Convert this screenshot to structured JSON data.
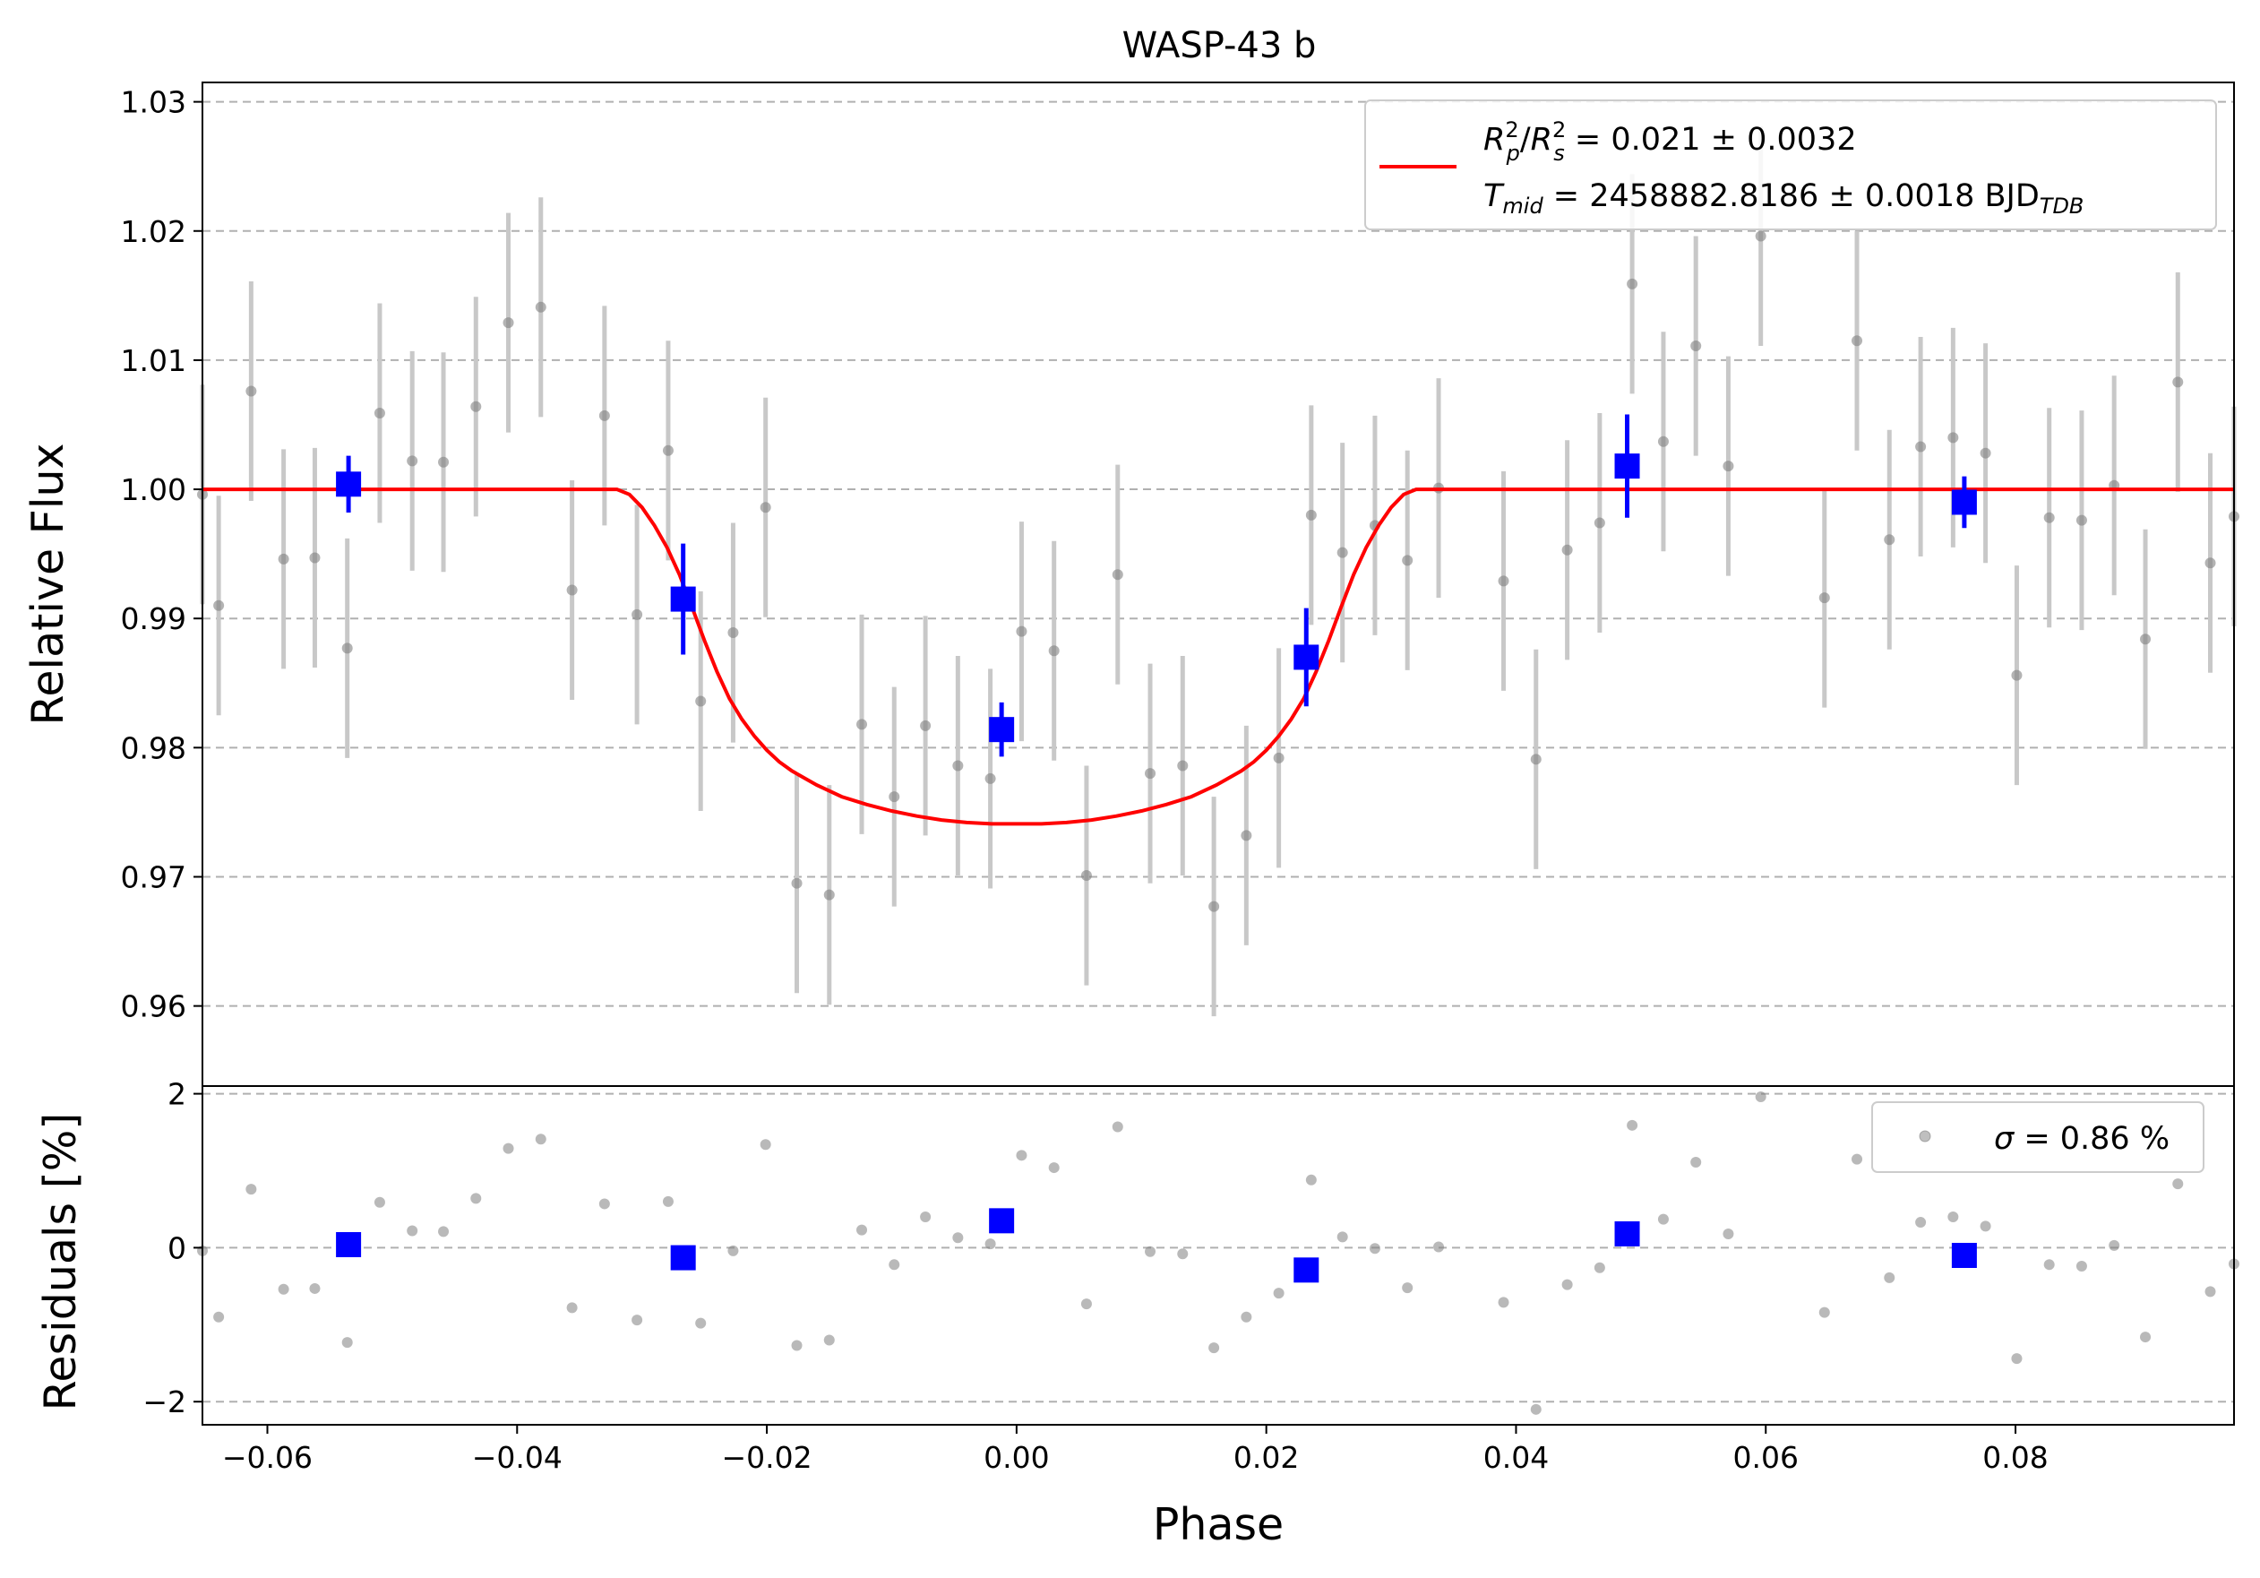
{
  "chart_data": {
    "type": "scatter",
    "title": "WASP-43 b",
    "xlabel": "Phase",
    "xlim": [
      -0.0652,
      0.0975
    ],
    "x_ticks": [
      "−0.06",
      "−0.04",
      "−0.02",
      "0.00",
      "0.02",
      "0.04",
      "0.06",
      "0.08"
    ],
    "x_tick_values": [
      -0.06,
      -0.04,
      -0.02,
      0.0,
      0.02,
      0.04,
      0.06,
      0.08
    ],
    "grid": "horizontal dashed",
    "colors": {
      "raw": "#808080",
      "raw_err": "#c8c8c8",
      "binned": "#0000ff",
      "model": "#ff0000",
      "grid": "#b0b0b0"
    },
    "top": {
      "ylabel": "Relative Flux",
      "ylim": [
        0.9538,
        1.0315
      ],
      "y_ticks": [
        "0.96",
        "0.97",
        "0.98",
        "0.99",
        "1.00",
        "1.01",
        "1.02",
        "1.03"
      ],
      "y_tick_values": [
        0.96,
        0.97,
        0.98,
        0.99,
        1.0,
        1.01,
        1.02,
        1.03
      ],
      "legend": {
        "position": "top-right",
        "line1_a": "R",
        "line1_a_sup": "2",
        "line1_a_sub": "p",
        "line1_b": "R",
        "line1_b_sup": "2",
        "line1_b_sub": "s",
        "line1_value": " = 0.021 ± 0.0032",
        "line2_T": "T",
        "line2_T_sub": "mid",
        "line2_value": " = 2458882.8186 ± 0.0018 BJD",
        "line2_unit_sub": "TDB"
      },
      "raw": [
        {
          "x": -0.0652,
          "y": 0.9996,
          "err": 0.0085
        },
        {
          "x": -0.0639,
          "y": 0.991,
          "err": 0.0085
        },
        {
          "x": -0.0613,
          "y": 1.0076,
          "err": 0.0085
        },
        {
          "x": -0.0587,
          "y": 0.9946,
          "err": 0.0085
        },
        {
          "x": -0.0562,
          "y": 0.9947,
          "err": 0.0085
        },
        {
          "x": -0.0536,
          "y": 0.9877,
          "err": 0.0085
        },
        {
          "x": -0.051,
          "y": 1.0059,
          "err": 0.0085
        },
        {
          "x": -0.0484,
          "y": 1.0022,
          "err": 0.0085
        },
        {
          "x": -0.0459,
          "y": 1.0021,
          "err": 0.0085
        },
        {
          "x": -0.0433,
          "y": 1.0064,
          "err": 0.0085
        },
        {
          "x": -0.0407,
          "y": 1.0129,
          "err": 0.0085
        },
        {
          "x": -0.0381,
          "y": 1.0141,
          "err": 0.0085
        },
        {
          "x": -0.0356,
          "y": 0.9922,
          "err": 0.0085
        },
        {
          "x": -0.033,
          "y": 1.0057,
          "err": 0.0085
        },
        {
          "x": -0.0304,
          "y": 0.9903,
          "err": 0.0085
        },
        {
          "x": -0.0279,
          "y": 1.003,
          "err": 0.0085
        },
        {
          "x": -0.0253,
          "y": 0.9836,
          "err": 0.0085
        },
        {
          "x": -0.0227,
          "y": 0.9889,
          "err": 0.0085
        },
        {
          "x": -0.0201,
          "y": 0.9986,
          "err": 0.0085
        },
        {
          "x": -0.0176,
          "y": 0.9695,
          "err": 0.0085
        },
        {
          "x": -0.015,
          "y": 0.9686,
          "err": 0.0085
        },
        {
          "x": -0.0124,
          "y": 0.9818,
          "err": 0.0085
        },
        {
          "x": -0.0098,
          "y": 0.9762,
          "err": 0.0085
        },
        {
          "x": -0.0073,
          "y": 0.9817,
          "err": 0.0085
        },
        {
          "x": -0.0047,
          "y": 0.9786,
          "err": 0.0085
        },
        {
          "x": -0.0021,
          "y": 0.9776,
          "err": 0.0085
        },
        {
          "x": 0.0004,
          "y": 0.989,
          "err": 0.0085
        },
        {
          "x": 0.003,
          "y": 0.9875,
          "err": 0.0085
        },
        {
          "x": 0.0056,
          "y": 0.9701,
          "err": 0.0085
        },
        {
          "x": 0.0081,
          "y": 0.9934,
          "err": 0.0085
        },
        {
          "x": 0.0107,
          "y": 0.978,
          "err": 0.0085
        },
        {
          "x": 0.0133,
          "y": 0.9786,
          "err": 0.0085
        },
        {
          "x": 0.0158,
          "y": 0.9677,
          "err": 0.0085
        },
        {
          "x": 0.0184,
          "y": 0.9732,
          "err": 0.0085
        },
        {
          "x": 0.021,
          "y": 0.9792,
          "err": 0.0085
        },
        {
          "x": 0.0236,
          "y": 0.998,
          "err": 0.0085
        },
        {
          "x": 0.0261,
          "y": 0.9951,
          "err": 0.0085
        },
        {
          "x": 0.0287,
          "y": 0.9972,
          "err": 0.0085
        },
        {
          "x": 0.0313,
          "y": 0.9945,
          "err": 0.0085
        },
        {
          "x": 0.0338,
          "y": 1.0001,
          "err": 0.0085
        },
        {
          "x": 0.039,
          "y": 0.9929,
          "err": 0.0085
        },
        {
          "x": 0.0416,
          "y": 0.9791,
          "err": 0.0085
        },
        {
          "x": 0.0441,
          "y": 0.9953,
          "err": 0.0085
        },
        {
          "x": 0.0467,
          "y": 0.9974,
          "err": 0.0085
        },
        {
          "x": 0.0493,
          "y": 1.0159,
          "err": 0.0085
        },
        {
          "x": 0.0518,
          "y": 1.0037,
          "err": 0.0085
        },
        {
          "x": 0.0544,
          "y": 1.0111,
          "err": 0.0085
        },
        {
          "x": 0.057,
          "y": 1.0018,
          "err": 0.0085
        },
        {
          "x": 0.0596,
          "y": 1.0196,
          "err": 0.0085
        },
        {
          "x": 0.0647,
          "y": 0.9916,
          "err": 0.0085
        },
        {
          "x": 0.0673,
          "y": 1.0115,
          "err": 0.0085
        },
        {
          "x": 0.0699,
          "y": 0.9961,
          "err": 0.0085
        },
        {
          "x": 0.0724,
          "y": 1.0033,
          "err": 0.0085
        },
        {
          "x": 0.075,
          "y": 1.004,
          "err": 0.0085
        },
        {
          "x": 0.0776,
          "y": 1.0028,
          "err": 0.0085
        },
        {
          "x": 0.0801,
          "y": 0.9856,
          "err": 0.0085
        },
        {
          "x": 0.0827,
          "y": 0.9978,
          "err": 0.0085
        },
        {
          "x": 0.0853,
          "y": 0.9976,
          "err": 0.0085
        },
        {
          "x": 0.0879,
          "y": 1.0003,
          "err": 0.0085
        },
        {
          "x": 0.0904,
          "y": 0.9884,
          "err": 0.0085
        },
        {
          "x": 0.093,
          "y": 1.0083,
          "err": 0.0085
        },
        {
          "x": 0.0956,
          "y": 0.9943,
          "err": 0.0085
        },
        {
          "x": 0.0975,
          "y": 0.9979,
          "err": 0.0085
        }
      ],
      "binned": [
        {
          "x": -0.0535,
          "y": 1.0004,
          "err": 0.0022
        },
        {
          "x": -0.0267,
          "y": 0.9915,
          "err": 0.0043
        },
        {
          "x": -0.0012,
          "y": 0.9814,
          "err": 0.0021
        },
        {
          "x": 0.0232,
          "y": 0.987,
          "err": 0.0038
        },
        {
          "x": 0.0489,
          "y": 1.0018,
          "err": 0.004
        },
        {
          "x": 0.0759,
          "y": 0.999,
          "err": 0.002
        }
      ],
      "model": {
        "x": [
          -0.0652,
          -0.032,
          -0.031,
          -0.03,
          -0.029,
          -0.028,
          -0.027,
          -0.026,
          -0.025,
          -0.024,
          -0.023,
          -0.022,
          -0.021,
          -0.02,
          -0.019,
          -0.018,
          -0.016,
          -0.014,
          -0.012,
          -0.01,
          -0.008,
          -0.006,
          -0.004,
          -0.002,
          0.0,
          0.002,
          0.004,
          0.006,
          0.008,
          0.01,
          0.012,
          0.014,
          0.016,
          0.018,
          0.019,
          0.02,
          0.021,
          0.022,
          0.023,
          0.024,
          0.025,
          0.026,
          0.027,
          0.028,
          0.029,
          0.03,
          0.031,
          0.032,
          0.0975
        ],
        "y": [
          1.0,
          1.0,
          0.9996,
          0.9986,
          0.9972,
          0.9955,
          0.9934,
          0.9909,
          0.9883,
          0.9859,
          0.9838,
          0.9822,
          0.9809,
          0.9798,
          0.9789,
          0.9782,
          0.9771,
          0.9762,
          0.9756,
          0.9751,
          0.9747,
          0.9744,
          0.9742,
          0.9741,
          0.9741,
          0.9741,
          0.9742,
          0.9744,
          0.9747,
          0.9751,
          0.9756,
          0.9762,
          0.9771,
          0.9782,
          0.9789,
          0.9798,
          0.9809,
          0.9822,
          0.9838,
          0.9859,
          0.9883,
          0.9909,
          0.9934,
          0.9955,
          0.9972,
          0.9986,
          0.9996,
          1.0,
          1.0
        ]
      }
    },
    "bottom": {
      "ylabel": "Residuals [%]",
      "ylim": [
        -2.3,
        2.1
      ],
      "y_ticks": [
        "−2",
        "0",
        "2"
      ],
      "y_tick_values": [
        -2,
        0,
        2
      ],
      "legend": {
        "position": "top-right",
        "sigma_symbol": "σ",
        "sigma_value": " = 0.86 %"
      },
      "raw": [
        {
          "x": -0.0652,
          "y": -0.04
        },
        {
          "x": -0.0639,
          "y": -0.9
        },
        {
          "x": -0.0613,
          "y": 0.76
        },
        {
          "x": -0.0587,
          "y": -0.54
        },
        {
          "x": -0.0562,
          "y": -0.53
        },
        {
          "x": -0.0536,
          "y": -1.23
        },
        {
          "x": -0.051,
          "y": 0.59
        },
        {
          "x": -0.0484,
          "y": 0.22
        },
        {
          "x": -0.0459,
          "y": 0.21
        },
        {
          "x": -0.0433,
          "y": 0.64
        },
        {
          "x": -0.0407,
          "y": 1.29
        },
        {
          "x": -0.0381,
          "y": 1.41
        },
        {
          "x": -0.0356,
          "y": -0.78
        },
        {
          "x": -0.033,
          "y": 0.57
        },
        {
          "x": -0.0304,
          "y": -0.94
        },
        {
          "x": -0.0279,
          "y": 0.6
        },
        {
          "x": -0.0253,
          "y": -0.98
        },
        {
          "x": -0.0227,
          "y": -0.04
        },
        {
          "x": -0.0201,
          "y": 1.34
        },
        {
          "x": -0.0176,
          "y": -1.27
        },
        {
          "x": -0.015,
          "y": -1.2
        },
        {
          "x": -0.0124,
          "y": 0.23
        },
        {
          "x": -0.0098,
          "y": -0.22
        },
        {
          "x": -0.0073,
          "y": 0.4
        },
        {
          "x": -0.0047,
          "y": 0.13
        },
        {
          "x": -0.0021,
          "y": 0.05
        },
        {
          "x": 0.0004,
          "y": 1.2
        },
        {
          "x": 0.003,
          "y": 1.04
        },
        {
          "x": 0.0056,
          "y": -0.73
        },
        {
          "x": 0.0081,
          "y": 1.57
        },
        {
          "x": 0.0107,
          "y": -0.05
        },
        {
          "x": 0.0133,
          "y": -0.08
        },
        {
          "x": 0.0158,
          "y": -1.3
        },
        {
          "x": 0.0184,
          "y": -0.9
        },
        {
          "x": 0.021,
          "y": -0.59
        },
        {
          "x": 0.0236,
          "y": 0.88
        },
        {
          "x": 0.0261,
          "y": 0.14
        },
        {
          "x": 0.0287,
          "y": -0.01
        },
        {
          "x": 0.0313,
          "y": -0.52
        },
        {
          "x": 0.0338,
          "y": 0.01
        },
        {
          "x": 0.039,
          "y": -0.71
        },
        {
          "x": 0.0416,
          "y": -2.1
        },
        {
          "x": 0.0441,
          "y": -0.48
        },
        {
          "x": 0.0467,
          "y": -0.26
        },
        {
          "x": 0.0493,
          "y": 1.59
        },
        {
          "x": 0.0518,
          "y": 0.37
        },
        {
          "x": 0.0544,
          "y": 1.11
        },
        {
          "x": 0.057,
          "y": 0.18
        },
        {
          "x": 0.0596,
          "y": 1.96
        },
        {
          "x": 0.0647,
          "y": -0.84
        },
        {
          "x": 0.0673,
          "y": 1.15
        },
        {
          "x": 0.0699,
          "y": -0.39
        },
        {
          "x": 0.0724,
          "y": 0.33
        },
        {
          "x": 0.075,
          "y": 0.4
        },
        {
          "x": 0.0776,
          "y": 0.28
        },
        {
          "x": 0.0801,
          "y": -1.44
        },
        {
          "x": 0.0827,
          "y": -0.22
        },
        {
          "x": 0.0853,
          "y": -0.24
        },
        {
          "x": 0.0879,
          "y": 0.03
        },
        {
          "x": 0.0904,
          "y": -1.16
        },
        {
          "x": 0.093,
          "y": 0.83
        },
        {
          "x": 0.0956,
          "y": -0.57
        },
        {
          "x": 0.0975,
          "y": -0.21
        }
      ],
      "binned": [
        {
          "x": -0.0535,
          "y": 0.04
        },
        {
          "x": -0.0267,
          "y": -0.13
        },
        {
          "x": -0.0012,
          "y": 0.35
        },
        {
          "x": 0.0232,
          "y": -0.29
        },
        {
          "x": 0.0489,
          "y": 0.18
        },
        {
          "x": 0.0759,
          "y": -0.1
        }
      ]
    }
  }
}
